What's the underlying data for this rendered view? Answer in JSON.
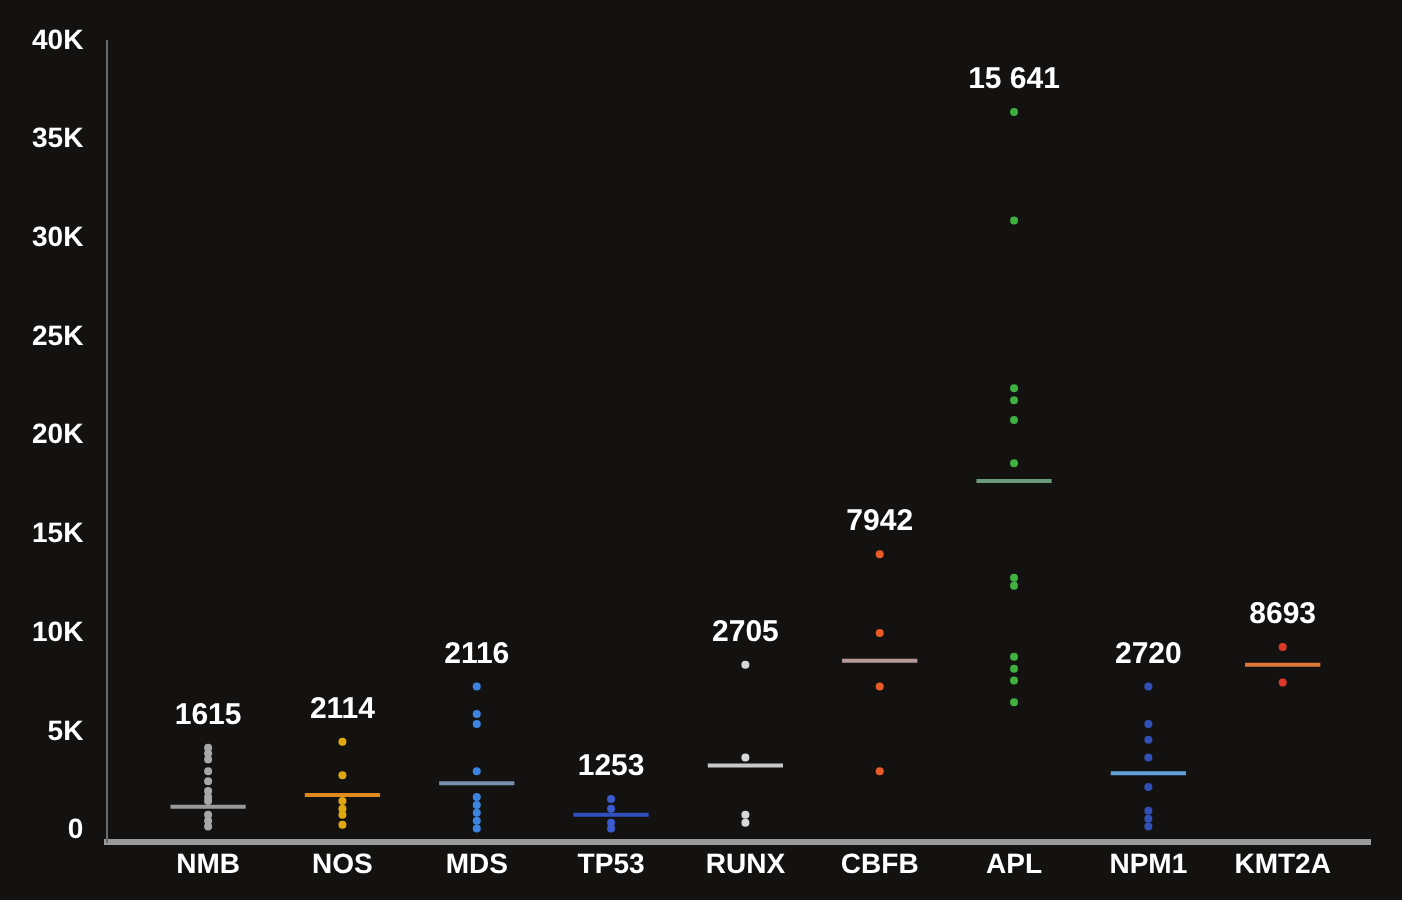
{
  "chart_data": {
    "type": "scatter",
    "categories": [
      "NMB",
      "NOS",
      "MDS",
      "TP53",
      "RUNX",
      "CBFB",
      "APL",
      "NPM1",
      "KMT2A"
    ],
    "ylim": [
      -600,
      40000
    ],
    "yticks": [
      0,
      {
        "value": 5000,
        "label": "5K"
      },
      {
        "value": 10000,
        "label": "10K"
      },
      {
        "value": 15000,
        "label": "15K"
      },
      {
        "value": 20000,
        "label": "20K"
      },
      {
        "value": 25000,
        "label": "25K"
      },
      {
        "value": 30000,
        "label": "30K"
      },
      {
        "value": 35000,
        "label": "35K"
      },
      {
        "value": 40000,
        "label": "40K"
      }
    ],
    "grid": false,
    "legend": false,
    "marker": "circle",
    "series": [
      {
        "color": "#a8a8a8",
        "x": [
          "NMB",
          "NMB",
          "NMB",
          "NMB",
          "NMB",
          "NMB",
          "NMB",
          "NMB",
          "NMB",
          "NMB",
          "NMB"
        ],
        "values": [
          4200,
          3900,
          3600,
          3000,
          2500,
          2000,
          1700,
          800,
          500,
          200,
          1500
        ]
      },
      {
        "color": "#e0a810",
        "x": [
          "NOS",
          "NOS",
          "NOS",
          "NOS",
          "NOS",
          "NOS"
        ],
        "values": [
          4500,
          2800,
          1500,
          1100,
          800,
          300
        ]
      },
      {
        "color": "#3c84e0",
        "x": [
          "MDS",
          "MDS",
          "MDS",
          "MDS",
          "MDS",
          "MDS",
          "MDS",
          "MDS",
          "MDS"
        ],
        "values": [
          7300,
          5900,
          5400,
          3000,
          1700,
          1300,
          900,
          500,
          100
        ]
      },
      {
        "color": "#3a5cd0",
        "x": [
          "TP53",
          "TP53",
          "TP53",
          "TP53"
        ],
        "values": [
          1600,
          1100,
          400,
          100
        ]
      },
      {
        "color": "#d8d8d8",
        "x": [
          "RUNX",
          "RUNX",
          "RUNX",
          "RUNX"
        ],
        "values": [
          8400,
          3700,
          800,
          400
        ]
      },
      {
        "color": "#e85a28",
        "x": [
          "CBFB",
          "CBFB",
          "CBFB",
          "CBFB"
        ],
        "values": [
          14000,
          10000,
          7300,
          3000
        ]
      },
      {
        "color": "#40b040",
        "x": [
          "APL",
          "APL",
          "APL",
          "APL",
          "APL",
          "APL",
          "APL",
          "APL",
          "APL",
          "APL",
          "APL",
          "APL"
        ],
        "values": [
          36400,
          30900,
          22400,
          21800,
          20800,
          18600,
          12800,
          12400,
          8800,
          8200,
          7600,
          6500
        ]
      },
      {
        "color": "#3050b8",
        "x": [
          "NPM1",
          "NPM1",
          "NPM1",
          "NPM1",
          "NPM1",
          "NPM1",
          "NPM1",
          "NPM1"
        ],
        "values": [
          7300,
          5400,
          4600,
          3700,
          2200,
          1000,
          600,
          200
        ]
      },
      {
        "color": "#e03828",
        "x": [
          "KMT2A",
          "KMT2A"
        ],
        "values": [
          9300,
          7500
        ]
      },
      {
        "type": "box",
        "colors": [
          "#9a9a9a",
          "#e08a20",
          "#7890b0",
          "#3050c0",
          "#c8c8c8",
          "#b89898",
          "#6a9a7a",
          "#60a0d8",
          "#e07838"
        ],
        "boxes": [
          {
            "low": 1200,
            "q1": 1200,
            "median": 1200,
            "q3": 1200,
            "high": 1200
          },
          {
            "low": 1800,
            "q1": 1800,
            "median": 1800,
            "q3": 1800,
            "high": 1800
          },
          {
            "low": 2400,
            "q1": 2400,
            "median": 2400,
            "q3": 2400,
            "high": 2400
          },
          {
            "low": 800,
            "q1": 800,
            "median": 800,
            "q3": 800,
            "high": 800
          },
          {
            "low": 3300,
            "q1": 3300,
            "median": 3300,
            "q3": 3300,
            "high": 3300
          },
          {
            "low": 8600,
            "q1": 8600,
            "median": 8600,
            "q3": 8600,
            "high": 8600
          },
          {
            "low": 17700,
            "q1": 17700,
            "median": 17700,
            "q3": 17700,
            "high": 17700
          },
          {
            "low": 2900,
            "q1": 2900,
            "median": 2900,
            "q3": 2900,
            "high": 2900
          },
          {
            "low": 8400,
            "q1": 8400,
            "median": 8400,
            "q3": 8400,
            "high": 8400
          }
        ]
      }
    ],
    "annotations": [
      "1615",
      "2114",
      "2116",
      "1253",
      "2705",
      "7942",
      "15 641",
      "2720",
      "8693"
    ]
  }
}
